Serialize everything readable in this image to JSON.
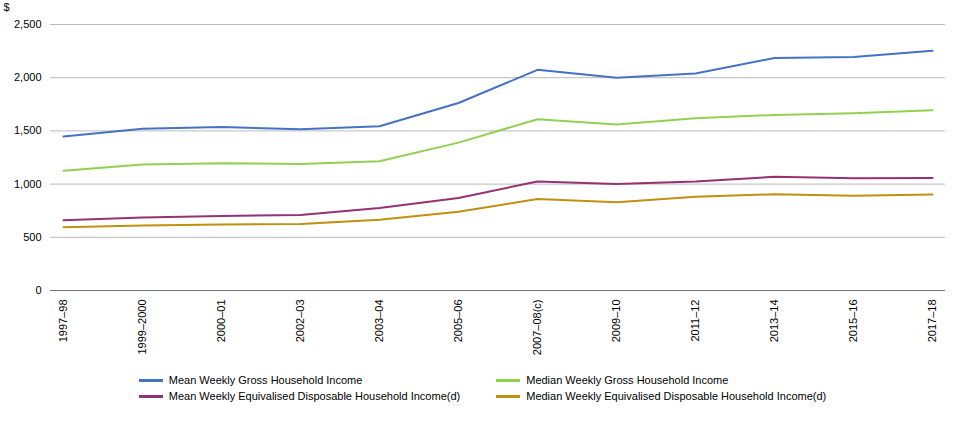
{
  "chart_data": {
    "type": "line",
    "categories": [
      "1997–98",
      "1999–2000",
      "2000–01",
      "2002–03",
      "2003–04",
      "2005–06",
      "2007–08(c)",
      "2009–10",
      "2011–12",
      "2013–14",
      "2015–16",
      "2017–18"
    ],
    "series": [
      {
        "name": "Mean Weekly Gross Household Income",
        "color": "#4472C4",
        "values": [
          1447,
          1520,
          1536,
          1515,
          1543,
          1762,
          2074,
          2000,
          2040,
          2185,
          2195,
          2254
        ]
      },
      {
        "name": "Median Weekly Gross Household Income",
        "color": "#92D050",
        "values": [
          1125,
          1185,
          1196,
          1190,
          1215,
          1390,
          1609,
          1560,
          1620,
          1650,
          1665,
          1694
        ]
      },
      {
        "name": "Mean Weekly Equivalised Disposable Household Income(d)",
        "color": "#943274",
        "values": [
          660,
          685,
          700,
          710,
          775,
          870,
          1025,
          1000,
          1025,
          1068,
          1055,
          1058
        ]
      },
      {
        "name": "Median Weekly Equivalised Disposable Household Income(d)",
        "color": "#C09010",
        "values": [
          595,
          610,
          620,
          625,
          665,
          740,
          860,
          830,
          880,
          905,
          890,
          903
        ]
      }
    ],
    "ylabel": "$",
    "ylim": [
      0,
      2500
    ],
    "yticks": [
      0,
      500,
      {
        "value": 1000,
        "label": "1,000"
      },
      {
        "value": 1500,
        "label": "1,500"
      },
      {
        "value": 2000,
        "label": "2,000"
      },
      {
        "value": 2500,
        "label": "2,500"
      }
    ],
    "grid": true,
    "legend": "bottom"
  }
}
